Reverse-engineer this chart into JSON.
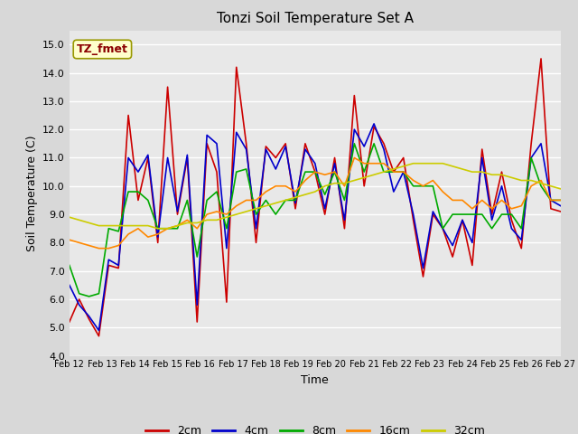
{
  "title": "Tonzi Soil Temperature Set A",
  "xlabel": "Time",
  "ylabel": "Soil Temperature (C)",
  "ylim": [
    4.0,
    15.5
  ],
  "yticks": [
    4.0,
    5.0,
    6.0,
    7.0,
    8.0,
    9.0,
    10.0,
    11.0,
    12.0,
    13.0,
    14.0,
    15.0
  ],
  "x_labels": [
    "Feb 12",
    "Feb 13",
    "Feb 14",
    "Feb 15",
    "Feb 16",
    "Feb 17",
    "Feb 18",
    "Feb 19",
    "Feb 20",
    "Feb 21",
    "Feb 22",
    "Feb 23",
    "Feb 24",
    "Feb 25",
    "Feb 26",
    "Feb 27"
  ],
  "colors": {
    "2cm": "#cc0000",
    "4cm": "#0000cc",
    "8cm": "#00aa00",
    "16cm": "#ff8800",
    "32cm": "#cccc00"
  },
  "linewidth": 1.2,
  "bg_color": "#d8d8d8",
  "plot_bg": "#e8e8e8",
  "annotation_text": "TZ_fmet",
  "annotation_color": "#8b0000",
  "annotation_bg": "#ffffcc",
  "legend_entries": [
    "2cm",
    "4cm",
    "8cm",
    "16cm",
    "32cm"
  ],
  "data_2cm": [
    5.2,
    6.0,
    5.3,
    4.7,
    7.2,
    7.1,
    12.5,
    9.5,
    11.0,
    8.0,
    13.5,
    9.0,
    11.0,
    5.2,
    11.5,
    10.5,
    5.9,
    14.2,
    11.5,
    8.0,
    11.4,
    11.0,
    11.5,
    9.2,
    11.5,
    10.5,
    9.0,
    11.0,
    8.5,
    13.2,
    10.0,
    12.1,
    11.5,
    10.5,
    11.0,
    8.8,
    6.8,
    9.0,
    8.5,
    7.5,
    8.8,
    7.2,
    11.3,
    9.0,
    10.5,
    8.8,
    7.8,
    11.5,
    14.5,
    9.2,
    9.1
  ],
  "data_4cm": [
    6.5,
    5.8,
    5.4,
    4.9,
    7.4,
    7.2,
    11.0,
    10.5,
    11.1,
    8.2,
    11.0,
    9.1,
    11.1,
    5.8,
    11.8,
    11.5,
    7.8,
    11.9,
    11.3,
    8.5,
    11.3,
    10.6,
    11.4,
    9.4,
    11.3,
    10.8,
    9.2,
    10.8,
    8.8,
    12.0,
    11.4,
    12.2,
    11.3,
    9.8,
    10.5,
    9.0,
    7.1,
    9.1,
    8.5,
    7.9,
    8.8,
    8.0,
    11.0,
    8.8,
    10.0,
    8.5,
    8.1,
    11.0,
    11.5,
    9.5,
    9.3
  ],
  "data_8cm": [
    7.2,
    6.2,
    6.1,
    6.2,
    8.5,
    8.4,
    9.8,
    9.8,
    9.5,
    8.5,
    8.5,
    8.5,
    9.5,
    7.5,
    9.5,
    9.8,
    8.5,
    10.5,
    10.6,
    9.0,
    9.5,
    9.0,
    9.5,
    9.5,
    10.5,
    10.5,
    9.7,
    10.5,
    9.5,
    11.5,
    10.5,
    11.5,
    10.5,
    10.5,
    10.5,
    10.0,
    10.0,
    10.0,
    8.5,
    9.0,
    9.0,
    9.0,
    9.0,
    8.5,
    9.0,
    9.0,
    8.5,
    11.0,
    10.0,
    9.5,
    9.5
  ],
  "data_16cm": [
    8.1,
    8.0,
    7.9,
    7.8,
    7.8,
    7.9,
    8.3,
    8.5,
    8.2,
    8.3,
    8.5,
    8.6,
    8.8,
    8.5,
    9.0,
    9.1,
    9.0,
    9.3,
    9.5,
    9.5,
    9.8,
    10.0,
    10.0,
    9.8,
    10.2,
    10.5,
    10.4,
    10.5,
    10.0,
    11.0,
    10.8,
    10.8,
    10.8,
    10.5,
    10.5,
    10.2,
    10.0,
    10.2,
    9.8,
    9.5,
    9.5,
    9.2,
    9.5,
    9.2,
    9.5,
    9.2,
    9.3,
    10.0,
    10.2,
    9.5,
    9.5
  ],
  "data_32cm": [
    8.9,
    8.8,
    8.7,
    8.6,
    8.6,
    8.6,
    8.6,
    8.6,
    8.6,
    8.5,
    8.5,
    8.6,
    8.7,
    8.7,
    8.8,
    8.8,
    8.9,
    9.0,
    9.1,
    9.2,
    9.3,
    9.4,
    9.5,
    9.6,
    9.7,
    9.8,
    10.0,
    10.1,
    10.1,
    10.2,
    10.3,
    10.4,
    10.5,
    10.6,
    10.7,
    10.8,
    10.8,
    10.8,
    10.8,
    10.7,
    10.6,
    10.5,
    10.5,
    10.4,
    10.4,
    10.3,
    10.2,
    10.2,
    10.1,
    10.0,
    9.9
  ]
}
